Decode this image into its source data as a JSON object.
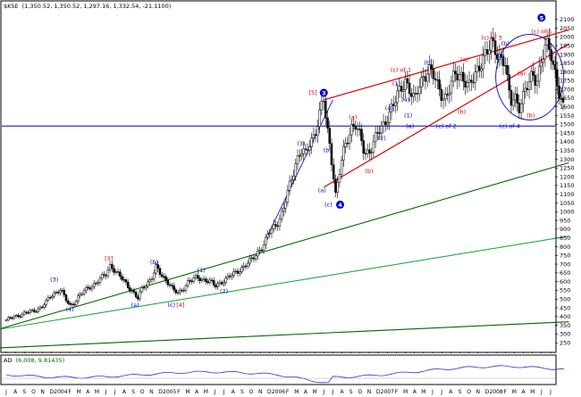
{
  "header": {
    "symbol": "$KSE",
    "ohlc": "(1,350.52, 1,350.52, 1,297.16, 1,332.54, -21.1100)"
  },
  "indicator": {
    "name": "AD",
    "values": "(6,008, 9.81435)"
  },
  "colors": {
    "candle": "#000000",
    "hline": "#0000cc",
    "channel": "#dd0000",
    "trend": "#006600",
    "trend_light": "#22aa44",
    "blue": "#0000cc",
    "red": "#dd0000",
    "ad": "#3333cc",
    "panel": "#000000"
  },
  "chart_data": {
    "type": "line",
    "title": "",
    "ylim": [
      200,
      2150
    ],
    "y_ticks": [
      250,
      300,
      350,
      400,
      450,
      500,
      550,
      600,
      650,
      700,
      750,
      800,
      850,
      900,
      950,
      1000,
      1050,
      1100,
      1150,
      1200,
      1250,
      1300,
      1350,
      1400,
      1450,
      1500,
      1550,
      1600,
      1650,
      1700,
      1750,
      1800,
      1850,
      1900,
      1950,
      2000,
      2050,
      2100
    ],
    "x_axis": {
      "months": [
        "J",
        "A",
        "S",
        "O",
        "N",
        "D",
        "2004",
        "F",
        "M",
        "A",
        "M",
        "J",
        "J",
        "A",
        "S",
        "O",
        "N",
        "D",
        "2005",
        "F",
        "M",
        "A",
        "M",
        "J",
        "J",
        "A",
        "S",
        "O",
        "N",
        "D",
        "2006",
        "F",
        "M",
        "A",
        "M",
        "J",
        "J",
        "A",
        "S",
        "O",
        "N",
        "D",
        "2007",
        "F",
        "M",
        "A",
        "M",
        "J",
        "J",
        "A",
        "S",
        "O",
        "N",
        "D",
        "2008",
        "F",
        "M",
        "A",
        "M",
        "J",
        "J"
      ],
      "start": "2003-07"
    },
    "series": [
      {
        "values": [
          [
            0,
            380
          ],
          [
            2,
            420
          ],
          [
            3,
            430
          ],
          [
            4,
            460
          ],
          [
            5,
            520
          ],
          [
            5.5,
            540
          ],
          [
            6,
            560
          ],
          [
            6.5,
            500
          ],
          [
            7,
            460
          ],
          [
            7.5,
            480
          ],
          [
            8,
            520
          ],
          [
            9,
            560
          ],
          [
            10,
            600
          ],
          [
            11,
            640
          ],
          [
            11.5,
            700
          ],
          [
            12,
            660
          ],
          [
            13,
            600
          ],
          [
            14,
            540
          ],
          [
            14.5,
            500
          ],
          [
            15,
            560
          ],
          [
            16,
            620
          ],
          [
            16.5,
            680
          ],
          [
            17,
            640
          ],
          [
            18,
            590
          ],
          [
            18.5,
            545
          ],
          [
            19,
            530
          ],
          [
            19.5,
            560
          ],
          [
            20,
            600
          ],
          [
            21,
            620
          ],
          [
            22,
            610
          ],
          [
            22.5,
            600
          ],
          [
            23,
            570
          ],
          [
            24,
            610
          ],
          [
            25,
            640
          ],
          [
            26,
            680
          ],
          [
            27,
            720
          ],
          [
            28,
            790
          ],
          [
            28.5,
            820
          ],
          [
            29,
            880
          ],
          [
            30,
            950
          ],
          [
            30.5,
            1000
          ],
          [
            31,
            1100
          ],
          [
            31.5,
            1200
          ],
          [
            32,
            1300
          ],
          [
            32.5,
            1350
          ],
          [
            33,
            1320
          ],
          [
            33.5,
            1400
          ],
          [
            34,
            1450
          ],
          [
            34.5,
            1550
          ],
          [
            35,
            1640
          ],
          [
            35.3,
            1490
          ],
          [
            35.6,
            1400
          ],
          [
            36,
            1250
          ],
          [
            36.3,
            1100
          ],
          [
            36.6,
            1180
          ],
          [
            37,
            1300
          ],
          [
            37.5,
            1400
          ],
          [
            38,
            1490
          ],
          [
            38.5,
            1500
          ],
          [
            39,
            1420
          ],
          [
            39.5,
            1330
          ],
          [
            40,
            1350
          ],
          [
            40.5,
            1400
          ],
          [
            41,
            1450
          ],
          [
            41.5,
            1480
          ],
          [
            42,
            1550
          ],
          [
            42.5,
            1600
          ],
          [
            43,
            1640
          ],
          [
            43.5,
            1700
          ],
          [
            44,
            1760
          ],
          [
            44.5,
            1700
          ],
          [
            45,
            1620
          ],
          [
            45.5,
            1720
          ],
          [
            46,
            1780
          ],
          [
            46.5,
            1820
          ],
          [
            47,
            1780
          ],
          [
            47.5,
            1720
          ],
          [
            48,
            1680
          ],
          [
            48.5,
            1650
          ],
          [
            49,
            1720
          ],
          [
            49.5,
            1780
          ],
          [
            50,
            1800
          ],
          [
            50.5,
            1760
          ],
          [
            51,
            1700
          ],
          [
            51.5,
            1760
          ],
          [
            52,
            1830
          ],
          [
            52.5,
            1880
          ],
          [
            53,
            1900
          ],
          [
            53.5,
            1960
          ],
          [
            54,
            1930
          ],
          [
            54.5,
            1880
          ],
          [
            55,
            1840
          ],
          [
            55.3,
            1700
          ],
          [
            55.6,
            1620
          ],
          [
            56,
            1680
          ],
          [
            56.5,
            1600
          ],
          [
            57,
            1650
          ],
          [
            57.5,
            1720
          ],
          [
            58,
            1800
          ],
          [
            58.5,
            1760
          ],
          [
            59,
            1850
          ],
          [
            59.5,
            1950
          ],
          [
            60,
            1930
          ],
          [
            60.5,
            1800
          ],
          [
            61,
            1650
          ],
          [
            61.5,
            1560
          ]
        ]
      }
    ],
    "overlays": {
      "horizontal_level": 1490,
      "channel": [
        {
          "x": [
            35,
            62
          ],
          "y": [
            1640,
            2040
          ]
        },
        {
          "x": [
            35,
            62
          ],
          "y": [
            1140,
            1960
          ]
        }
      ],
      "trendlines": [
        {
          "x": [
            -1,
            62
          ],
          "y": [
            325,
            1280
          ],
          "style": "dark"
        },
        {
          "x": [
            -1,
            62
          ],
          "y": [
            325,
            860
          ],
          "style": "light"
        },
        {
          "x": [
            -1,
            62
          ],
          "y": [
            220,
            370
          ],
          "style": "dark"
        }
      ]
    },
    "annotations": [
      {
        "text": "(3)",
        "x": 5.3,
        "y": 600,
        "color": "blue"
      },
      {
        "text": "(4)",
        "x": 7,
        "y": 430,
        "color": "blue"
      },
      {
        "text": "[3]",
        "x": 11.3,
        "y": 720,
        "color": "red"
      },
      {
        "text": "(b)",
        "x": 16.3,
        "y": 700,
        "color": "blue"
      },
      {
        "text": "(a)",
        "x": 14.2,
        "y": 455,
        "color": "blue"
      },
      {
        "text": "(c)",
        "x": 18.2,
        "y": 455,
        "color": "blue"
      },
      {
        "text": "[4]",
        "x": 19.2,
        "y": 455,
        "color": "red"
      },
      {
        "text": "(1)",
        "x": 21.5,
        "y": 655,
        "color": "blue"
      },
      {
        "text": "(2)",
        "x": 24,
        "y": 535,
        "color": "blue"
      },
      {
        "text": "(3)",
        "x": 32.5,
        "y": 1380,
        "color": "blue"
      },
      {
        "text": "[5]",
        "x": 33.8,
        "y": 1670,
        "color": "red"
      },
      {
        "text": "3",
        "x": 35,
        "y": 1670,
        "color": "blue",
        "circle": true
      },
      {
        "text": "(b)",
        "x": 35.4,
        "y": 1340,
        "color": "blue"
      },
      {
        "text": "(a)",
        "x": 34.8,
        "y": 1110,
        "color": "blue"
      },
      {
        "text": "(c)",
        "x": 35.5,
        "y": 1030,
        "color": "blue"
      },
      {
        "text": "4",
        "x": 36.8,
        "y": 1030,
        "color": "blue",
        "circle": true
      },
      {
        "text": "(a)",
        "x": 38.2,
        "y": 1530,
        "color": "red"
      },
      {
        "text": "(b)",
        "x": 40,
        "y": 1220,
        "color": "red"
      },
      {
        "text": "(c) of 1",
        "x": 43.5,
        "y": 1800,
        "color": "red"
      },
      {
        "text": "(b)",
        "x": 46.5,
        "y": 1840,
        "color": "blue"
      },
      {
        "text": "(a)",
        "x": 44.5,
        "y": 1480,
        "color": "blue"
      },
      {
        "text": "(c) of 2",
        "x": 48.5,
        "y": 1480,
        "color": "blue"
      },
      {
        "text": "(a)",
        "x": 50.5,
        "y": 1860,
        "color": "red"
      },
      {
        "text": "(b)",
        "x": 50.2,
        "y": 1560,
        "color": "red"
      },
      {
        "text": "(c) of 3",
        "x": 53.5,
        "y": 1985,
        "color": "red"
      },
      {
        "text": "(b)",
        "x": 55,
        "y": 1950,
        "color": "blue"
      },
      {
        "text": "(a)",
        "x": 54.5,
        "y": 1880,
        "color": "blue"
      },
      {
        "text": "(c) of 4",
        "x": 55.5,
        "y": 1480,
        "color": "blue"
      },
      {
        "text": "(a)",
        "x": 56.8,
        "y": 1780,
        "color": "red"
      },
      {
        "text": "(b)",
        "x": 57.8,
        "y": 1540,
        "color": "red"
      },
      {
        "text": "(c) of 5",
        "x": 59,
        "y": 2020,
        "color": "red"
      },
      {
        "text": "5",
        "x": 59,
        "y": 2100,
        "color": "blue",
        "circle": true
      },
      {
        "text": "(4)",
        "x": 42.2,
        "y": 1580,
        "color": "blue"
      },
      {
        "text": "(1)",
        "x": 43,
        "y": 1720,
        "color": "blue"
      },
      {
        "text": "(2)",
        "x": 41.4,
        "y": 1410,
        "color": "blue"
      },
      {
        "text": "(1)",
        "x": 44.3,
        "y": 1540,
        "color": "blue"
      },
      {
        "text": "(4)",
        "x": 44,
        "y": 1630,
        "color": "blue"
      }
    ]
  }
}
